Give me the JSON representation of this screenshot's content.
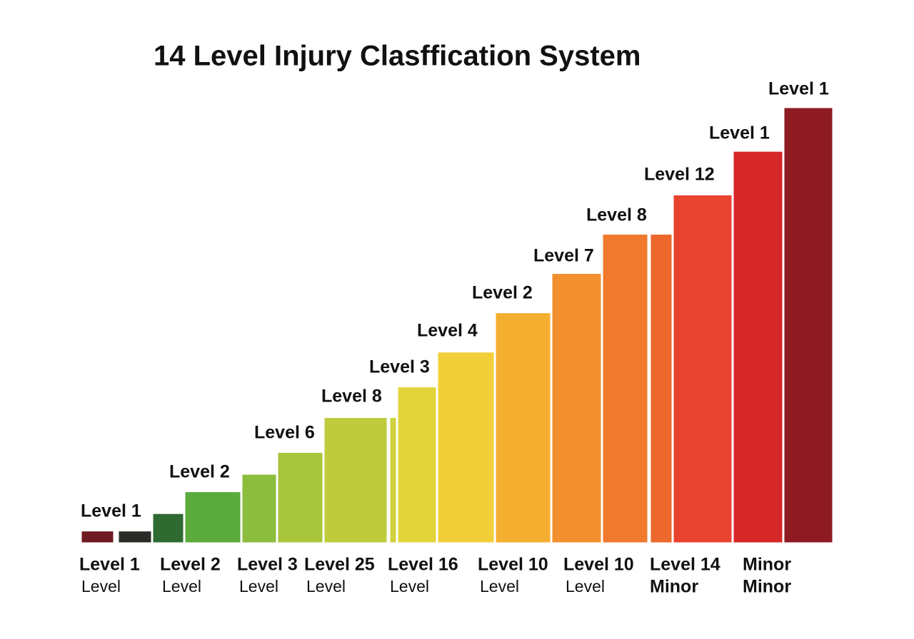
{
  "chart_data": {
    "type": "bar",
    "title": "14 Level Injury Clasffication System",
    "values": [
      3,
      3,
      7,
      12,
      16,
      21,
      29,
      29,
      36,
      44,
      53,
      62,
      71,
      71,
      80,
      90,
      100
    ],
    "colors": [
      "#6e1a20",
      "#2b2b28",
      "#2f6a30",
      "#5aab3c",
      "#8cbd3c",
      "#a9c53c",
      "#bdcb3c",
      "#cfd23c",
      "#e2d53c",
      "#f2cf38",
      "#f4ae30",
      "#f29030",
      "#ef7a2d",
      "#ec682d",
      "#e84230",
      "#d62729",
      "#8e1b21"
    ],
    "ylim": [
      0,
      100
    ],
    "top_labels": [
      "Level 1",
      "Level 2",
      "Level 6",
      "Level 8",
      "Level 3",
      "Level 4",
      "Level 2",
      "Level 7",
      "Level 8",
      "Level 12",
      "Level 1",
      "Level 1"
    ],
    "bottom_labels": [
      [
        "Level 1",
        "Level"
      ],
      [
        "Level 2",
        "Level"
      ],
      [
        "Level 3",
        "Level"
      ],
      [
        "Level 25",
        "Level"
      ],
      [
        "Level 16",
        "Level"
      ],
      [
        "Level 10",
        "Level"
      ],
      [
        "Level 10",
        "Level"
      ],
      [
        "Level 14",
        "Minor"
      ],
      [
        "Minor",
        "Minor"
      ]
    ]
  }
}
